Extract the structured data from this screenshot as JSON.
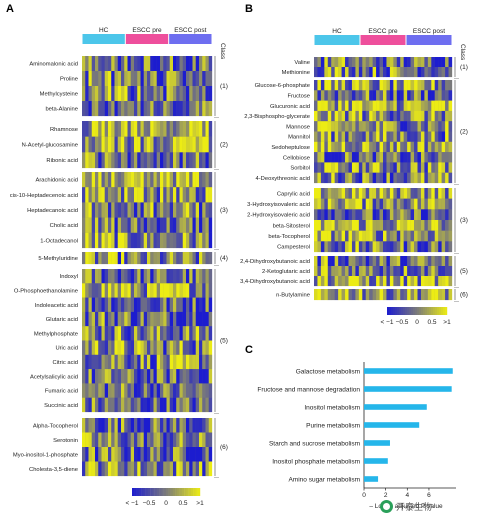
{
  "panel_letters": [
    "A",
    "B",
    "C"
  ],
  "watermark": {
    "text": "开泰生物",
    "icon": "wechat-icon"
  },
  "colors": {
    "hc": "#4cc6ea",
    "escc_pre": "#ee4f9c",
    "escc_post": "#6e6ef0",
    "heat_low": "#1c1ccf",
    "heat_mid": "#7a7a7a",
    "heat_high": "#ecec14",
    "bar": "#25b6ea"
  },
  "chart_data": [
    {
      "type": "heatmap",
      "panel": "A",
      "groups": [
        "HC",
        "ESCC pre",
        "ESCC post"
      ],
      "class_header": "Class",
      "classes": [
        {
          "label": "(1)",
          "rows": [
            "Aminomalonic acid",
            "Proline",
            "Methylcysteine",
            "beta-Alanine"
          ]
        },
        {
          "label": "(2)",
          "rows": [
            "Rhamnose",
            "N-Acetyl-glucosamine",
            "Ribonic acid"
          ]
        },
        {
          "label": "(3)",
          "rows": [
            "Arachidonic acid",
            "cis-10-Heptadecenoic acid",
            "Heptadecanoic acid",
            "Cholic acid",
            "1-Octadecanol"
          ]
        },
        {
          "label": "(4)",
          "rows": [
            "5-Methyluridine"
          ]
        },
        {
          "label": "(5)",
          "rows": [
            "Indoxyl",
            "O-Phosphoethanolamine",
            "Indoleacetic acid",
            "Glutaric acid",
            "Methylphosphate",
            "Uric acid",
            "Citric acid",
            "Acetylsalicylic acid",
            "Fumaric acid",
            "Succinic acid"
          ]
        },
        {
          "label": "(6)",
          "rows": [
            "Alpha-Tocopherol",
            "Serotonin",
            "Myo-inositol-1-phosphate",
            "Cholesta-3,5-diene"
          ]
        }
      ],
      "colorbar": {
        "ticks": [
          "< −1",
          "−0.5",
          "0",
          "0.5",
          ">1"
        ],
        "range": [
          -1,
          1
        ]
      }
    },
    {
      "type": "heatmap",
      "panel": "B",
      "groups": [
        "HC",
        "ESCC pre",
        "ESCC post"
      ],
      "class_header": "Class",
      "classes": [
        {
          "label": "(1)",
          "rows": [
            "Valine",
            "Methionine"
          ]
        },
        {
          "label": "(2)",
          "rows": [
            "Glucose-6-phosphate",
            "Fructose",
            "Glucuronic acid",
            "2,3-Bisphospho-glycerate",
            "Mannose",
            "Mannitol",
            "Sedoheptulose",
            "Cellobiose",
            "Sorbitol",
            "4-Deoxythreonic acid"
          ]
        },
        {
          "label": "(3)",
          "rows": [
            "Caprylic acid",
            "3-Hydroxyisovaleric acid",
            "2-Hydroxyisovaleric acid",
            "beta-Sitosterol",
            "beta-Tocopherol",
            "Campesterol"
          ]
        },
        {
          "label": "(5)",
          "rows": [
            "2,4-Dihydroxybutanoic acid",
            "2-Ketoglutaric acid",
            "3,4-Dihydroxybutanoic acid"
          ]
        },
        {
          "label": "(6)",
          "rows": [
            "n-Butylamine"
          ]
        }
      ],
      "colorbar": {
        "ticks": [
          "< −1",
          "−0.5",
          "0",
          "0.5",
          ">1"
        ],
        "range": [
          -1,
          1
        ]
      }
    },
    {
      "type": "bar",
      "panel": "C",
      "orientation": "horizontal",
      "categories": [
        "Galactose metabolism",
        "Fructose and mannose degradation",
        "Inositol metabolism",
        "Purine metabolism",
        "Starch and sucrose metabolism",
        "Inositol phosphate metabolism",
        "Amino sugar metabolism"
      ],
      "values": [
        8.2,
        8.1,
        5.8,
        5.1,
        2.4,
        2.2,
        1.3
      ],
      "xlabel": "– Log10 adjusted P value",
      "xlim": [
        0,
        8.5
      ],
      "xticks": [
        "0",
        "2",
        "4",
        "6"
      ],
      "xtick_values": [
        0,
        2,
        4,
        6
      ]
    }
  ]
}
